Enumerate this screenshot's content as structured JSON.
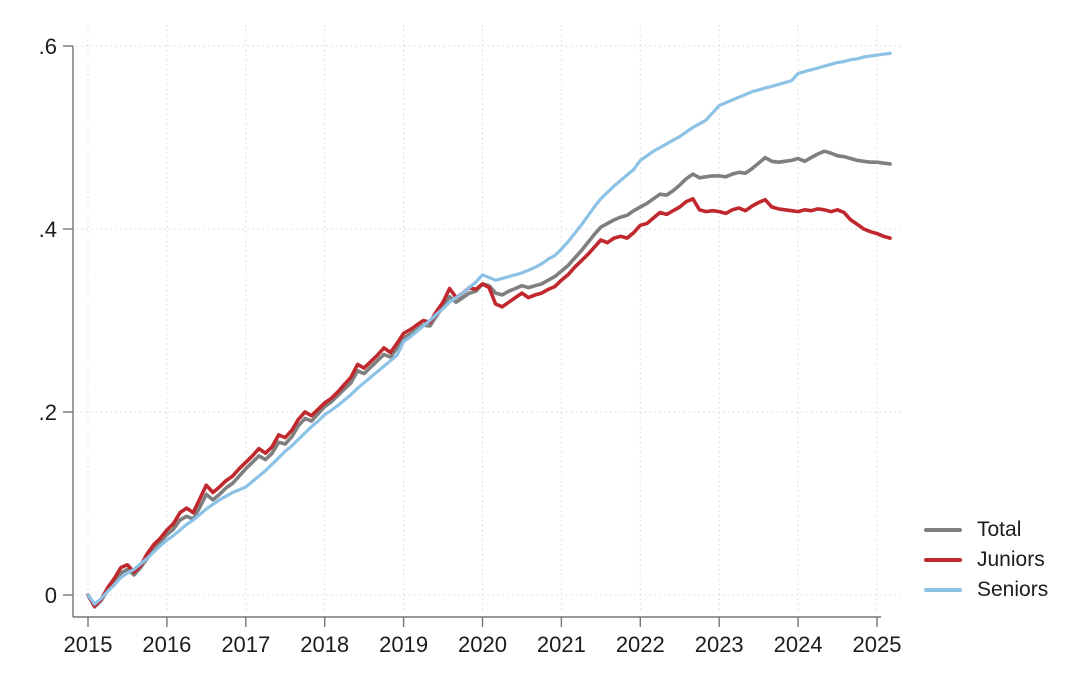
{
  "chart_data": {
    "type": "line",
    "title": "",
    "xlabel": "",
    "ylabel": "",
    "grid": "dotted, both axes",
    "legend_position": "right, outside plot, lower area",
    "x_ticks": [
      2015,
      2016,
      2017,
      2018,
      2019,
      2020,
      2021,
      2022,
      2023,
      2024,
      2025
    ],
    "y_ticks": [
      {
        "v": 0.0,
        "label": "0"
      },
      {
        "v": 0.2,
        "label": ".2"
      },
      {
        "v": 0.4,
        "label": ".4"
      },
      {
        "v": 0.6,
        "label": ".6"
      }
    ],
    "xlim": [
      2015,
      2025.3
    ],
    "ylim": [
      -0.03,
      0.62
    ],
    "x_start": 2015.0,
    "x_step_years": 0.0833333,
    "n_points": 123,
    "x_unit": "monthly, Jan 2015 - Mar 2025",
    "legend": {
      "entries": [
        {
          "label": "Total",
          "color": "#7f7f7f"
        },
        {
          "label": "Juniors",
          "color": "#c1282d"
        },
        {
          "label": "Seniors",
          "color": "#8cc2e5"
        }
      ]
    },
    "series": [
      {
        "name": "Total",
        "color": "#7f7f7f",
        "stroke_width": 3.6,
        "values": [
          0.0,
          -0.013,
          -0.006,
          0.005,
          0.014,
          0.024,
          0.028,
          0.022,
          0.03,
          0.04,
          0.05,
          0.058,
          0.066,
          0.072,
          0.082,
          0.086,
          0.083,
          0.096,
          0.11,
          0.104,
          0.11,
          0.117,
          0.122,
          0.13,
          0.138,
          0.145,
          0.152,
          0.148,
          0.155,
          0.167,
          0.165,
          0.173,
          0.185,
          0.193,
          0.19,
          0.198,
          0.206,
          0.211,
          0.218,
          0.225,
          0.232,
          0.245,
          0.242,
          0.249,
          0.256,
          0.263,
          0.26,
          0.27,
          0.281,
          0.285,
          0.29,
          0.295,
          0.294,
          0.305,
          0.315,
          0.326,
          0.32,
          0.325,
          0.33,
          0.332,
          0.34,
          0.338,
          0.33,
          0.328,
          0.332,
          0.335,
          0.338,
          0.336,
          0.338,
          0.34,
          0.344,
          0.348,
          0.354,
          0.36,
          0.368,
          0.376,
          0.385,
          0.394,
          0.402,
          0.406,
          0.41,
          0.413,
          0.415,
          0.42,
          0.424,
          0.428,
          0.433,
          0.438,
          0.437,
          0.442,
          0.448,
          0.455,
          0.46,
          0.456,
          0.457,
          0.458,
          0.458,
          0.457,
          0.46,
          0.462,
          0.461,
          0.466,
          0.472,
          0.478,
          0.474,
          0.473,
          0.474,
          0.475,
          0.477,
          0.474,
          0.478,
          0.482,
          0.485,
          0.483,
          0.48,
          0.479,
          0.477,
          0.475,
          0.474,
          0.473,
          0.473,
          0.472,
          0.471
        ]
      },
      {
        "name": "Juniors",
        "color": "#c1282d",
        "stroke_width": 3.6,
        "values": [
          0.0,
          -0.012,
          -0.005,
          0.008,
          0.018,
          0.03,
          0.033,
          0.025,
          0.032,
          0.045,
          0.055,
          0.062,
          0.071,
          0.078,
          0.09,
          0.095,
          0.09,
          0.105,
          0.12,
          0.112,
          0.118,
          0.125,
          0.13,
          0.138,
          0.145,
          0.152,
          0.16,
          0.155,
          0.162,
          0.175,
          0.172,
          0.18,
          0.192,
          0.2,
          0.196,
          0.203,
          0.21,
          0.215,
          0.222,
          0.23,
          0.238,
          0.252,
          0.248,
          0.255,
          0.262,
          0.27,
          0.265,
          0.275,
          0.286,
          0.29,
          0.295,
          0.3,
          0.298,
          0.31,
          0.32,
          0.335,
          0.325,
          0.33,
          0.336,
          0.334,
          0.34,
          0.336,
          0.318,
          0.315,
          0.32,
          0.325,
          0.33,
          0.325,
          0.328,
          0.33,
          0.334,
          0.337,
          0.344,
          0.35,
          0.358,
          0.365,
          0.372,
          0.38,
          0.388,
          0.385,
          0.39,
          0.392,
          0.39,
          0.396,
          0.404,
          0.406,
          0.412,
          0.418,
          0.416,
          0.42,
          0.424,
          0.43,
          0.433,
          0.421,
          0.419,
          0.42,
          0.419,
          0.417,
          0.421,
          0.423,
          0.42,
          0.425,
          0.429,
          0.432,
          0.424,
          0.422,
          0.421,
          0.42,
          0.419,
          0.421,
          0.42,
          0.422,
          0.421,
          0.419,
          0.421,
          0.418,
          0.41,
          0.405,
          0.4,
          0.397,
          0.395,
          0.392,
          0.39
        ]
      },
      {
        "name": "Seniors",
        "color": "#8cc2e5",
        "stroke_width": 3.2,
        "values": [
          0.0,
          -0.01,
          -0.004,
          0.004,
          0.011,
          0.019,
          0.024,
          0.028,
          0.034,
          0.04,
          0.047,
          0.054,
          0.06,
          0.065,
          0.071,
          0.077,
          0.082,
          0.088,
          0.094,
          0.099,
          0.104,
          0.108,
          0.112,
          0.115,
          0.118,
          0.124,
          0.13,
          0.136,
          0.143,
          0.15,
          0.157,
          0.163,
          0.17,
          0.177,
          0.184,
          0.19,
          0.197,
          0.202,
          0.207,
          0.213,
          0.219,
          0.226,
          0.232,
          0.238,
          0.244,
          0.25,
          0.256,
          0.262,
          0.277,
          0.282,
          0.288,
          0.294,
          0.3,
          0.307,
          0.313,
          0.32,
          0.325,
          0.33,
          0.336,
          0.342,
          0.35,
          0.347,
          0.344,
          0.346,
          0.348,
          0.35,
          0.352,
          0.355,
          0.358,
          0.362,
          0.367,
          0.371,
          0.378,
          0.386,
          0.395,
          0.404,
          0.414,
          0.424,
          0.433,
          0.44,
          0.447,
          0.453,
          0.459,
          0.465,
          0.475,
          0.48,
          0.485,
          0.489,
          0.493,
          0.497,
          0.501,
          0.506,
          0.511,
          0.515,
          0.519,
          0.527,
          0.535,
          0.538,
          0.541,
          0.544,
          0.547,
          0.55,
          0.552,
          0.554,
          0.556,
          0.558,
          0.56,
          0.562,
          0.57,
          0.572,
          0.574,
          0.576,
          0.578,
          0.58,
          0.582,
          0.583,
          0.585,
          0.586,
          0.588,
          0.589,
          0.59,
          0.591,
          0.592
        ]
      }
    ],
    "colors": {
      "background": "#ffffff",
      "axis": "#767676",
      "grid": "#d6d6d6",
      "tick_text": "#1c1c1c"
    }
  }
}
